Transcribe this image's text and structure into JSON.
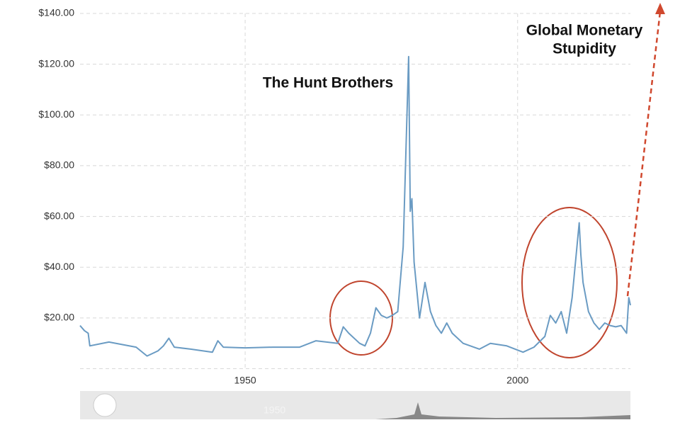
{
  "chart_data": {
    "type": "line",
    "annotations": [
      "The Hunt Brothers",
      "Global Monetary",
      "Stupidity"
    ],
    "navigator_label": "1950",
    "x": [
      1919.7,
      1920.5,
      1921.2,
      1921.5,
      1925,
      1930,
      1932,
      1934,
      1935,
      1936,
      1937,
      1940,
      1944,
      1945,
      1946,
      1950,
      1955,
      1960,
      1963,
      1967,
      1968,
      1969,
      1971,
      1972,
      1973,
      1974,
      1975,
      1976,
      1977,
      1978,
      1979,
      1980.0,
      1980.3,
      1980.6,
      1981,
      1982,
      1983,
      1984,
      1985,
      1986,
      1987,
      1988,
      1990,
      1993,
      1995,
      1998,
      2001,
      2003,
      2005,
      2006,
      2007,
      2008,
      2009,
      2010,
      2011.3,
      2011.6,
      2012,
      2013,
      2014,
      2015,
      2016,
      2017,
      2018,
      2019,
      2020,
      2020.4,
      2020.7
    ],
    "series": [
      {
        "color": "#6a9bc3",
        "values": [
          17,
          15,
          14,
          9,
          10.5,
          8.5,
          5,
          7,
          9,
          12,
          8.5,
          7.7,
          6.5,
          11,
          8.5,
          8.2,
          8.5,
          8.5,
          11,
          10,
          16.5,
          14,
          10,
          9,
          14,
          24,
          21,
          20,
          21,
          22.5,
          48,
          123,
          62,
          67,
          42,
          20,
          34,
          22.5,
          17,
          14,
          18,
          14,
          10,
          7.7,
          10,
          9,
          6.5,
          8.5,
          12.7,
          21,
          18,
          22.5,
          14,
          28,
          57.5,
          45,
          34,
          22.5,
          18,
          15.5,
          18,
          17,
          16.5,
          17,
          14,
          28,
          25
        ]
      }
    ],
    "xlim": [
      1919.7,
      2020.7
    ],
    "xticks": [
      1950,
      2000
    ],
    "ylim": [
      0,
      140
    ],
    "yticks": [
      {
        "value": 20,
        "label": "$20.00"
      },
      {
        "value": 40,
        "label": "$40.00"
      },
      {
        "value": 60,
        "label": "$60.00"
      },
      {
        "value": 80,
        "label": "$80.00"
      },
      {
        "value": 100,
        "label": "$100.00"
      },
      {
        "value": 120,
        "label": "$120.00"
      },
      {
        "value": 140,
        "label": "$140.00"
      }
    ],
    "grid": true
  }
}
